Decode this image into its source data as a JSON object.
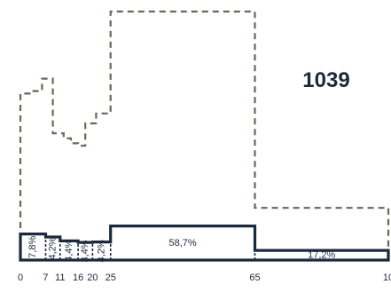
{
  "chart_data": {
    "type": "area",
    "title": "",
    "total_label": "1039",
    "x_ticks": [
      "0",
      "7",
      "11",
      "16",
      "20",
      "25",
      "65",
      "10"
    ],
    "xlim": [
      0,
      102
    ],
    "ylim": [
      0,
      100
    ],
    "colors": {
      "outline": "#1c2a3d",
      "dashed": "#6b6656",
      "background": "#ffffff"
    },
    "dashed_profile": {
      "name": "",
      "points": [
        [
          0,
          67
        ],
        [
          3,
          67
        ],
        [
          3,
          68
        ],
        [
          6,
          68
        ],
        [
          6,
          73
        ],
        [
          9,
          73
        ],
        [
          9,
          51
        ],
        [
          12,
          51
        ],
        [
          12,
          49
        ],
        [
          14,
          49
        ],
        [
          14,
          47
        ],
        [
          16,
          47
        ],
        [
          16,
          46
        ],
        [
          18,
          46
        ],
        [
          18,
          55
        ],
        [
          21,
          55
        ],
        [
          21,
          59
        ],
        [
          25,
          59
        ],
        [
          25,
          100
        ],
        [
          65,
          100
        ],
        [
          65,
          21
        ],
        [
          102,
          21
        ],
        [
          102,
          0
        ]
      ]
    },
    "solid_profile": {
      "name": "",
      "points": [
        [
          0,
          10.5
        ],
        [
          7,
          10.5
        ],
        [
          7,
          9.3
        ],
        [
          11,
          9.3
        ],
        [
          11,
          7.7
        ],
        [
          16,
          7.7
        ],
        [
          16,
          7.1
        ],
        [
          20,
          7.1
        ],
        [
          20,
          7.3
        ],
        [
          25,
          7.3
        ],
        [
          25,
          13.7
        ],
        [
          65,
          13.7
        ],
        [
          65,
          3.9
        ],
        [
          102,
          3.9
        ],
        [
          102,
          0
        ]
      ]
    },
    "segments": [
      {
        "label": "7,8%",
        "x0": 0,
        "x1": 7,
        "vertical": true
      },
      {
        "label": "4,2%",
        "x0": 7,
        "x1": 11,
        "vertical": true
      },
      {
        "label": "4,4%",
        "x0": 11,
        "x1": 16,
        "vertical": true
      },
      {
        "label": "3,4%",
        "x0": 16,
        "x1": 20,
        "vertical": true
      },
      {
        "label": "4,2%",
        "x0": 20,
        "x1": 25,
        "vertical": true
      },
      {
        "label": "58,7%",
        "x0": 25,
        "x1": 65,
        "vertical": false
      },
      {
        "label": "17,2%",
        "x0": 65,
        "x1": 102,
        "vertical": false
      }
    ]
  }
}
